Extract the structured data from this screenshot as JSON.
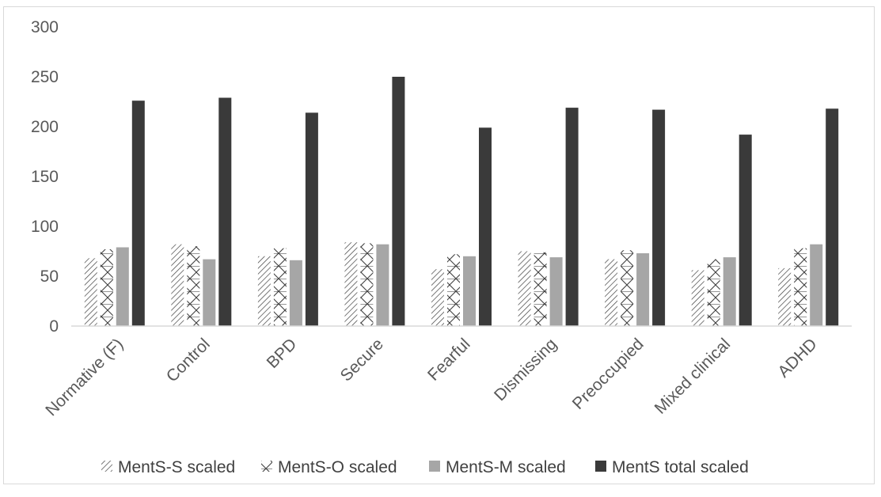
{
  "chart_data": {
    "type": "bar",
    "categories": [
      "Normative (F)",
      "Control",
      "BPD",
      "Secure",
      "Fearful",
      "Dismissing",
      "Preoccupied",
      "Mixed clinical",
      "ADHD"
    ],
    "series": [
      {
        "name": "MentS-S scaled",
        "pattern": "diagonal-hatch",
        "color": "#404040",
        "values": [
          68,
          82,
          70,
          84,
          57,
          75,
          67,
          56,
          58
        ]
      },
      {
        "name": "MentS-O scaled",
        "pattern": "cross-hatch",
        "color": "#404040",
        "values": [
          77,
          80,
          78,
          83,
          72,
          74,
          76,
          67,
          78
        ]
      },
      {
        "name": "MentS-M scaled",
        "pattern": "solid",
        "color": "#a6a6a6",
        "values": [
          79,
          67,
          66,
          82,
          70,
          69,
          73,
          69,
          82
        ]
      },
      {
        "name": "MentS total scaled",
        "pattern": "solid",
        "color": "#3a3a3a",
        "values": [
          226,
          229,
          214,
          250,
          199,
          219,
          217,
          192,
          218
        ]
      }
    ],
    "yticks": [
      "0",
      "50",
      "100",
      "150",
      "200",
      "250",
      "300"
    ],
    "ylim": [
      0,
      300
    ],
    "grid": false,
    "legend_position": "bottom"
  }
}
